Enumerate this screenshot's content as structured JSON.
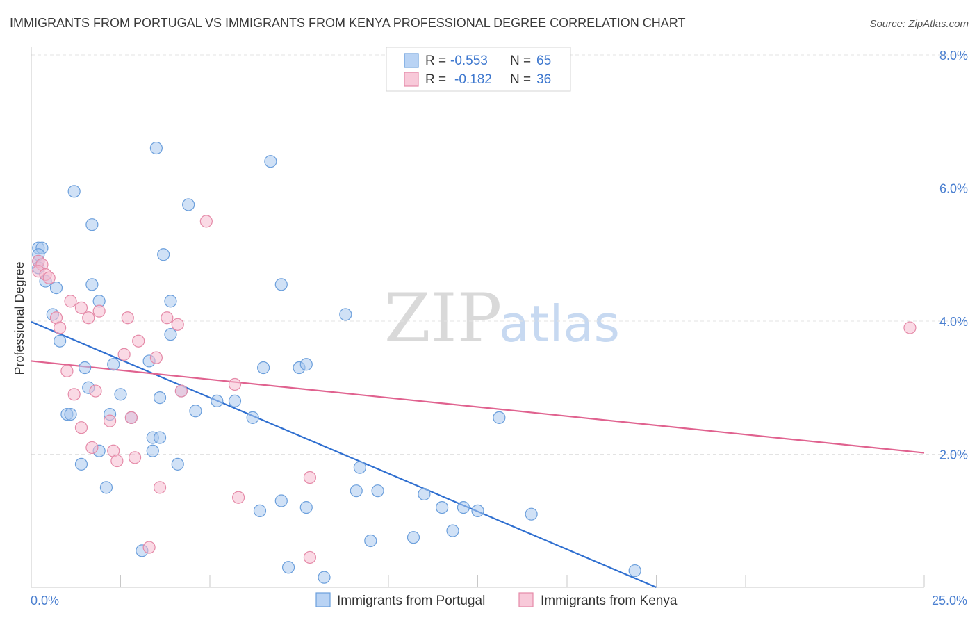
{
  "chart_data": {
    "type": "scatter",
    "title": "IMMIGRANTS FROM PORTUGAL VS IMMIGRANTS FROM KENYA PROFESSIONAL DEGREE CORRELATION CHART",
    "source": "Source: ZipAtlas.com",
    "ylabel": "Professional Degree",
    "xlabel": "",
    "xlim": [
      0,
      25
    ],
    "ylim": [
      0,
      8
    ],
    "x_tick_labels": [
      "0.0%",
      "25.0%"
    ],
    "y_ticks": [
      2,
      4,
      6,
      8
    ],
    "y_tick_labels": [
      "2.0%",
      "4.0%",
      "6.0%",
      "8.0%"
    ],
    "grid": true,
    "watermark": {
      "zip": "ZIP",
      "atlas": "atlas"
    },
    "legend_stats": [
      {
        "r_label": "R = ",
        "r_value": "-0.553",
        "n_label": "N = ",
        "n_value": "65"
      },
      {
        "r_label": "R = ",
        "r_value": "-0.182",
        "n_label": "N = ",
        "n_value": "36"
      }
    ],
    "series": [
      {
        "name": "Immigrants from Portugal",
        "color": "#a9c8ef",
        "stroke": "#6b9fdc",
        "line_color": "#2f6fd0",
        "trend": {
          "x": [
            0,
            17.5
          ],
          "y": [
            3.99,
            0.0
          ]
        },
        "points": [
          [
            0.2,
            5.1
          ],
          [
            0.3,
            5.1
          ],
          [
            0.2,
            4.9
          ],
          [
            0.2,
            4.8
          ],
          [
            0.2,
            5.0
          ],
          [
            0.4,
            4.6
          ],
          [
            0.7,
            4.5
          ],
          [
            0.6,
            4.1
          ],
          [
            0.8,
            3.7
          ],
          [
            1.2,
            5.95
          ],
          [
            1.7,
            5.45
          ],
          [
            3.5,
            6.6
          ],
          [
            6.7,
            6.4
          ],
          [
            4.4,
            5.75
          ],
          [
            3.7,
            5.0
          ],
          [
            1.7,
            4.55
          ],
          [
            1.9,
            4.3
          ],
          [
            3.9,
            4.3
          ],
          [
            3.9,
            3.8
          ],
          [
            3.3,
            3.4
          ],
          [
            2.3,
            3.35
          ],
          [
            1.5,
            3.3
          ],
          [
            1.6,
            3.0
          ],
          [
            2.5,
            2.9
          ],
          [
            3.6,
            2.85
          ],
          [
            4.2,
            2.95
          ],
          [
            5.2,
            2.8
          ],
          [
            5.7,
            2.8
          ],
          [
            4.6,
            2.65
          ],
          [
            1.0,
            2.6
          ],
          [
            1.1,
            2.6
          ],
          [
            2.2,
            2.6
          ],
          [
            2.8,
            2.55
          ],
          [
            6.2,
            2.55
          ],
          [
            3.4,
            2.25
          ],
          [
            3.6,
            2.25
          ],
          [
            3.4,
            2.05
          ],
          [
            1.9,
            2.05
          ],
          [
            1.4,
            1.85
          ],
          [
            4.1,
            1.85
          ],
          [
            2.1,
            1.5
          ],
          [
            7.0,
            4.55
          ],
          [
            7.5,
            3.3
          ],
          [
            7.7,
            3.35
          ],
          [
            6.5,
            3.3
          ],
          [
            8.8,
            4.1
          ],
          [
            13.1,
            2.55
          ],
          [
            9.2,
            1.8
          ],
          [
            9.7,
            1.45
          ],
          [
            9.1,
            1.45
          ],
          [
            11.0,
            1.4
          ],
          [
            11.5,
            1.2
          ],
          [
            12.1,
            1.2
          ],
          [
            12.5,
            1.15
          ],
          [
            14.0,
            1.1
          ],
          [
            3.1,
            0.55
          ],
          [
            7.2,
            0.3
          ],
          [
            8.2,
            0.15
          ],
          [
            9.5,
            0.7
          ],
          [
            10.7,
            0.75
          ],
          [
            11.8,
            0.85
          ],
          [
            16.9,
            0.25
          ],
          [
            6.4,
            1.15
          ],
          [
            7.0,
            1.3
          ],
          [
            7.7,
            1.2
          ]
        ]
      },
      {
        "name": "Immigrants from Kenya",
        "color": "#f5bcd0",
        "stroke": "#e58aa8",
        "line_color": "#e0628f",
        "trend": {
          "x": [
            0,
            25
          ],
          "y": [
            3.4,
            2.02
          ]
        },
        "points": [
          [
            0.2,
            4.9
          ],
          [
            0.3,
            4.85
          ],
          [
            0.2,
            4.75
          ],
          [
            0.4,
            4.7
          ],
          [
            0.5,
            4.65
          ],
          [
            0.7,
            4.05
          ],
          [
            0.8,
            3.9
          ],
          [
            1.1,
            4.3
          ],
          [
            1.4,
            4.2
          ],
          [
            1.6,
            4.05
          ],
          [
            1.9,
            4.15
          ],
          [
            2.7,
            4.05
          ],
          [
            3.8,
            4.05
          ],
          [
            4.1,
            3.95
          ],
          [
            3.0,
            3.7
          ],
          [
            2.6,
            3.5
          ],
          [
            3.5,
            3.45
          ],
          [
            1.0,
            3.25
          ],
          [
            1.2,
            2.9
          ],
          [
            1.8,
            2.95
          ],
          [
            4.2,
            2.95
          ],
          [
            5.7,
            3.05
          ],
          [
            2.2,
            2.5
          ],
          [
            2.8,
            2.55
          ],
          [
            1.4,
            2.4
          ],
          [
            1.7,
            2.1
          ],
          [
            2.3,
            2.05
          ],
          [
            2.4,
            1.9
          ],
          [
            2.9,
            1.95
          ],
          [
            3.6,
            1.5
          ],
          [
            5.8,
            1.35
          ],
          [
            7.8,
            1.65
          ],
          [
            3.3,
            0.6
          ],
          [
            7.8,
            0.45
          ],
          [
            24.6,
            3.9
          ],
          [
            4.9,
            5.5
          ]
        ]
      }
    ]
  }
}
